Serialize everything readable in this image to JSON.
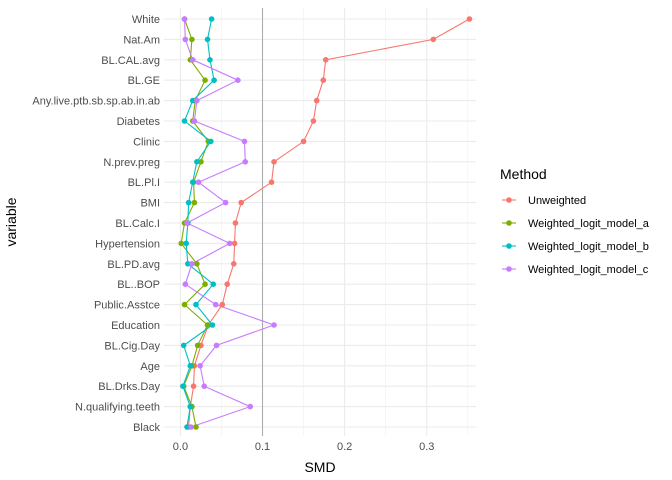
{
  "chart_data": {
    "type": "line",
    "title": "",
    "xlabel": "SMD",
    "ylabel": "variable",
    "xlim": [
      -0.02,
      0.36
    ],
    "xticks": [
      0.0,
      0.1,
      0.2,
      0.3
    ],
    "xtick_labels": [
      "0.0",
      "0.1",
      "0.2",
      "0.3"
    ],
    "vline": 0.1,
    "grid": true,
    "legend": {
      "title": "Method",
      "position": "right"
    },
    "categories": [
      "White",
      "Nat.Am",
      "BL.CAL.avg",
      "BL.GE",
      "Any.live.ptb.sb.sp.ab.in.ab",
      "Diabetes",
      "Clinic",
      "N.prev.preg",
      "BL.Pl.I",
      "BMI",
      "BL.Calc.I",
      "Hypertension",
      "BL.PD.avg",
      "BL..BOP",
      "Public.Asstce",
      "Education",
      "BL.Cig.Day",
      "Age",
      "BL.Drks.Day",
      "N.qualifying.teeth",
      "Black"
    ],
    "series": [
      {
        "name": "Unweighted",
        "color": "#F8766D",
        "values": [
          0.352,
          0.308,
          0.177,
          0.174,
          0.166,
          0.162,
          0.15,
          0.114,
          0.111,
          0.074,
          0.067,
          0.066,
          0.065,
          0.057,
          0.051,
          0.034,
          0.025,
          0.017,
          0.016,
          0.012,
          0.01
        ]
      },
      {
        "name": "Weighted_logit_model_a",
        "color": "#7CAE00",
        "values": [
          0.005,
          0.014,
          0.012,
          0.03,
          0.018,
          0.015,
          0.034,
          0.025,
          0.016,
          0.017,
          0.005,
          0.001,
          0.02,
          0.03,
          0.005,
          0.033,
          0.021,
          0.014,
          0.004,
          0.014,
          0.019
        ]
      },
      {
        "name": "Weighted_logit_model_b",
        "color": "#00BFC4",
        "values": [
          0.038,
          0.033,
          0.036,
          0.041,
          0.015,
          0.005,
          0.037,
          0.02,
          0.015,
          0.01,
          0.009,
          0.007,
          0.009,
          0.04,
          0.019,
          0.039,
          0.004,
          0.012,
          0.003,
          0.012,
          0.008
        ]
      },
      {
        "name": "Weighted_logit_model_c",
        "color": "#C77CFF",
        "values": [
          0.005,
          0.006,
          0.015,
          0.07,
          0.02,
          0.017,
          0.078,
          0.079,
          0.022,
          0.055,
          0.008,
          0.06,
          0.014,
          0.006,
          0.043,
          0.114,
          0.044,
          0.024,
          0.029,
          0.085,
          0.013
        ]
      }
    ]
  }
}
